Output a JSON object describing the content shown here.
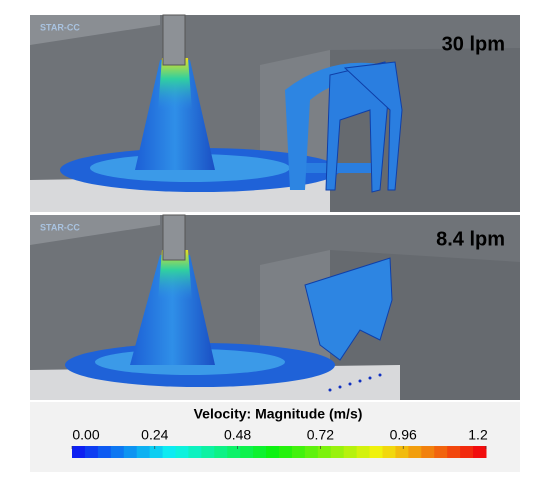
{
  "panels": [
    {
      "label": "30 lpm",
      "watermark": "STAR-CC"
    },
    {
      "label": "8.4 lpm",
      "watermark": "STAR-CC"
    }
  ],
  "colorbar": {
    "title": "Velocity: Magnitude (m/s)",
    "range": [
      0,
      1.2
    ],
    "ticks": [
      {
        "value": 0,
        "label": "0.00"
      },
      0.24,
      0.48,
      0.72,
      0.96,
      1.2
    ]
  }
}
